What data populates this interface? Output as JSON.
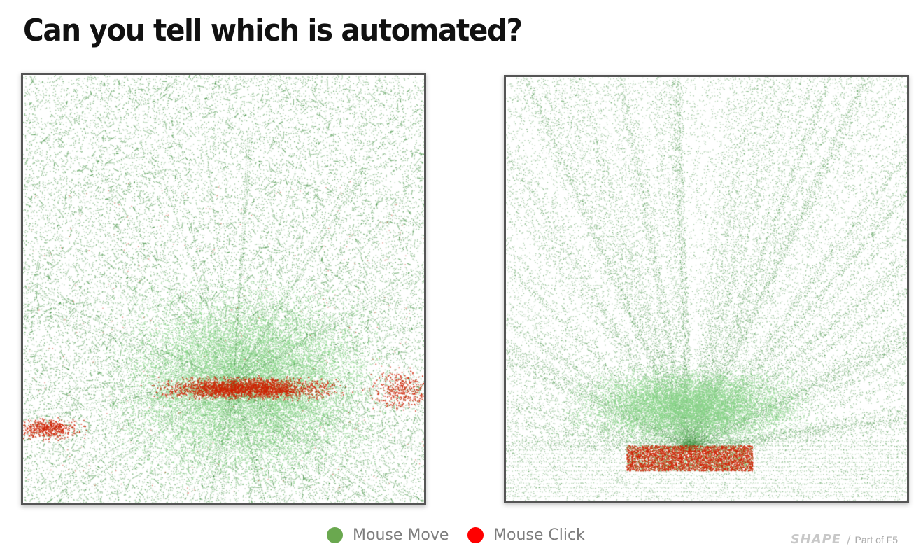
{
  "title": "Can you tell which is automated?",
  "legend": {
    "items": [
      {
        "label": "Mouse Move",
        "color": "#6aa84f"
      },
      {
        "label": "Mouse Click",
        "color": "#ff0000"
      }
    ]
  },
  "brand": {
    "logo": "SHAPE",
    "separator": "/",
    "tagline": "Part of F5"
  },
  "colors": {
    "move_dark": "#3e8e3e",
    "move_light": "#86d486",
    "click": "#cc2200"
  },
  "panels": [
    {
      "name": "human-heatmap",
      "description_shown": "dense scattered mouse move points with a horizontal band of click points"
    },
    {
      "name": "bot-heatmap",
      "description_shown": "radial mouse move lines converging on a rectangular block of click points"
    }
  ]
}
